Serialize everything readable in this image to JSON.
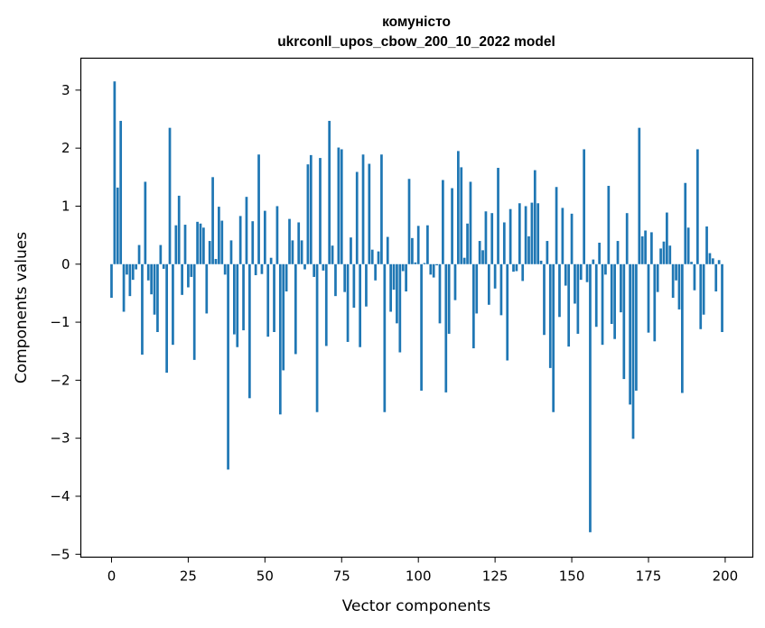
{
  "chart_data": {
    "type": "bar",
    "title_line1": "комуністо",
    "title_line2": "ukrconll_upos_cbow_200_10_2022 model",
    "xlabel": "Vector components",
    "ylabel": "Components values",
    "xlim": [
      -10,
      209
    ],
    "ylim": [
      -5.05,
      3.55
    ],
    "xticks": [
      0,
      25,
      50,
      75,
      100,
      125,
      150,
      175,
      200
    ],
    "yticks": [
      -5,
      -4,
      -3,
      -2,
      -1,
      0,
      1,
      2,
      3
    ],
    "bar_color": "#1f77b4",
    "grid": false,
    "legend": "none",
    "values": [
      -0.58,
      3.15,
      1.32,
      2.47,
      -0.82,
      -0.18,
      -0.55,
      -0.27,
      -0.09,
      0.33,
      -1.56,
      1.42,
      -0.28,
      -0.52,
      -0.87,
      -1.17,
      0.33,
      -0.08,
      -1.87,
      2.35,
      -1.39,
      0.67,
      1.18,
      -0.53,
      0.68,
      -0.4,
      -0.22,
      -1.65,
      0.73,
      0.7,
      0.63,
      -0.85,
      0.4,
      1.5,
      0.09,
      0.99,
      0.75,
      -0.18,
      -3.54,
      0.41,
      -1.21,
      -1.43,
      0.83,
      -1.14,
      1.16,
      -2.31,
      0.74,
      -0.19,
      1.89,
      -0.17,
      0.92,
      -1.25,
      0.11,
      -1.17,
      1.0,
      -2.59,
      -1.83,
      -0.47,
      0.78,
      0.41,
      -1.55,
      0.72,
      0.41,
      -0.09,
      1.72,
      1.88,
      -0.22,
      -2.55,
      1.83,
      -0.11,
      -1.41,
      2.47,
      0.32,
      -0.55,
      2.01,
      1.98,
      -0.48,
      -1.34,
      0.46,
      -0.75,
      1.59,
      -1.43,
      1.89,
      -0.73,
      1.73,
      0.25,
      -0.28,
      0.22,
      1.89,
      -2.55,
      0.47,
      -0.82,
      -0.44,
      -1.02,
      -1.52,
      -0.12,
      -0.47,
      1.47,
      0.45,
      0.03,
      0.66,
      -2.18,
      0.02,
      0.67,
      -0.18,
      -0.23,
      -0.02,
      -1.02,
      1.45,
      -2.21,
      -1.2,
      1.31,
      -0.62,
      1.95,
      1.67,
      0.11,
      0.7,
      1.42,
      -1.45,
      -0.85,
      0.4,
      0.24,
      0.91,
      -0.7,
      0.88,
      -0.42,
      1.66,
      -0.88,
      0.72,
      -1.66,
      0.95,
      -0.13,
      -0.12,
      1.05,
      -0.29,
      1.0,
      0.48,
      1.06,
      1.62,
      1.05,
      0.06,
      -1.22,
      0.4,
      -1.79,
      -2.55,
      1.33,
      -0.91,
      0.97,
      -0.37,
      -1.42,
      0.87,
      -0.68,
      -1.2,
      -0.27,
      1.98,
      -0.31,
      -4.62,
      0.08,
      -1.08,
      0.37,
      -1.39,
      -0.18,
      1.35,
      -1.03,
      -1.29,
      0.4,
      -0.83,
      -1.98,
      0.88,
      -2.42,
      -3.01,
      -2.18,
      2.35,
      0.48,
      0.58,
      -1.18,
      0.55,
      -1.33,
      -0.48,
      0.27,
      0.39,
      0.89,
      0.32,
      -0.58,
      -0.28,
      -0.78,
      -2.22,
      1.4,
      0.63,
      0.04,
      -0.45,
      1.98,
      -1.12,
      -0.87,
      0.65,
      0.19,
      0.1,
      -0.47,
      0.07,
      -1.17
    ]
  }
}
